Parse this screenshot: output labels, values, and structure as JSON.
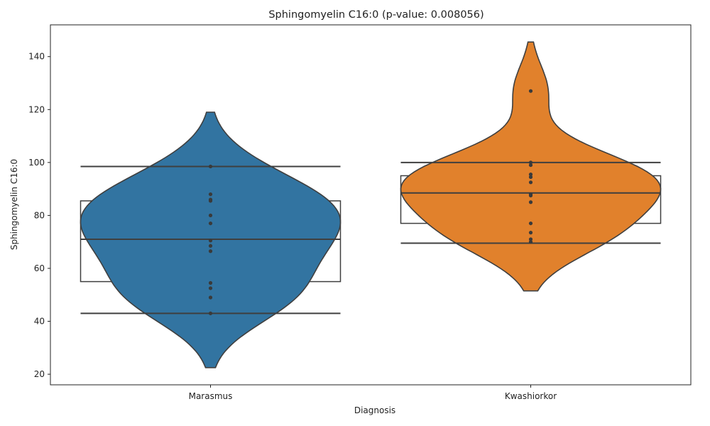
{
  "chart_data": {
    "type": "violin",
    "title": "Sphingomyelin C16:0 (p-value: 0.008056)",
    "xlabel": "Diagnosis",
    "ylabel": "Sphingomyelin C16:0",
    "ylim": [
      16,
      152
    ],
    "yticks": [
      20,
      40,
      60,
      80,
      100,
      120,
      140
    ],
    "categories": [
      "Marasmus",
      "Kwashiorkor"
    ],
    "series": [
      {
        "category": "Marasmus",
        "color": "#3274a1",
        "box": {
          "q1": 55,
          "median": 71,
          "q3": 85.5,
          "whisker_low": 43,
          "whisker_high": 98.5
        },
        "violin_range": [
          22.5,
          119
        ],
        "points": [
          43,
          49,
          52.5,
          54.5,
          66.5,
          68.5,
          70.5,
          77,
          80,
          85.5,
          86,
          88,
          98.5
        ]
      },
      {
        "category": "Kwashiorkor",
        "color": "#e1812c",
        "box": {
          "q1": 77,
          "median": 88.5,
          "q3": 95,
          "whisker_low": 69.5,
          "whisker_high": 100
        },
        "violin_range": [
          51.5,
          145.5
        ],
        "points": [
          70,
          71,
          73.5,
          77,
          85,
          87.5,
          88,
          92.5,
          94.5,
          95.5,
          99,
          100,
          127
        ]
      }
    ]
  }
}
